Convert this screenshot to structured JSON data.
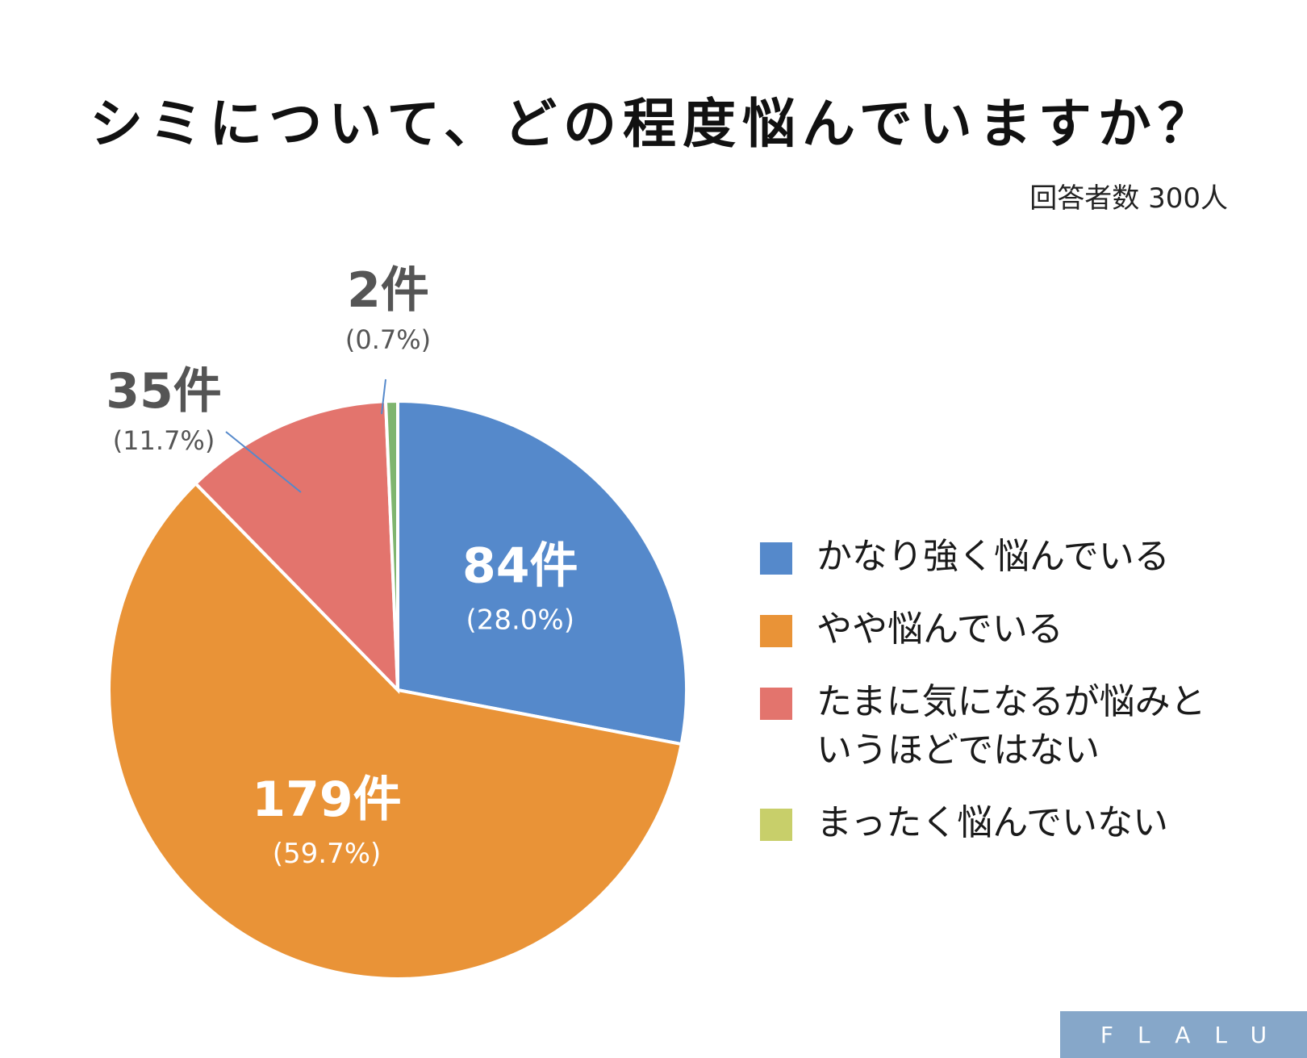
{
  "title": "シミについて、どの程度悩んでいますか？",
  "subtitle": "回答者数 300人",
  "logo": "FLALU",
  "colors": {
    "logo_bg": "#86a7c9",
    "callout_text": "#555555",
    "inside_text": "#ffffff"
  },
  "chart_data": {
    "type": "pie",
    "title": "シミについて、どの程度悩んでいますか？",
    "total": 300,
    "legend_position": "right",
    "slices": [
      {
        "name": "かなり強く悩んでいる",
        "count": 84,
        "count_label": "84件",
        "percent_label": "(28.0%)",
        "color": "#5589cb",
        "label_style": "inside"
      },
      {
        "name": "やや悩んでいる",
        "count": 179,
        "count_label": "179件",
        "percent_label": "(59.7%)",
        "color": "#e99337",
        "label_style": "inside"
      },
      {
        "name": "たまに気になるが悩みというほどではない",
        "count": 35,
        "count_label": "35件",
        "percent_label": "(11.7%)",
        "color": "#e3746d",
        "label_style": "callout"
      },
      {
        "name": "まったく悩んでいない",
        "count": 2,
        "count_label": "2件",
        "percent_label": "(0.7%)",
        "color": "#7fb56f",
        "label_style": "callout"
      }
    ],
    "legend": [
      {
        "label": "かなり強く悩んでいる",
        "color": "#5589cb"
      },
      {
        "label": "やや悩んでいる",
        "color": "#e99337"
      },
      {
        "label": "たまに気になるが悩みと\nいうほどではない",
        "color": "#e3746d"
      },
      {
        "label": "まったく悩んでいない",
        "color": "#c8cf6a"
      }
    ]
  }
}
